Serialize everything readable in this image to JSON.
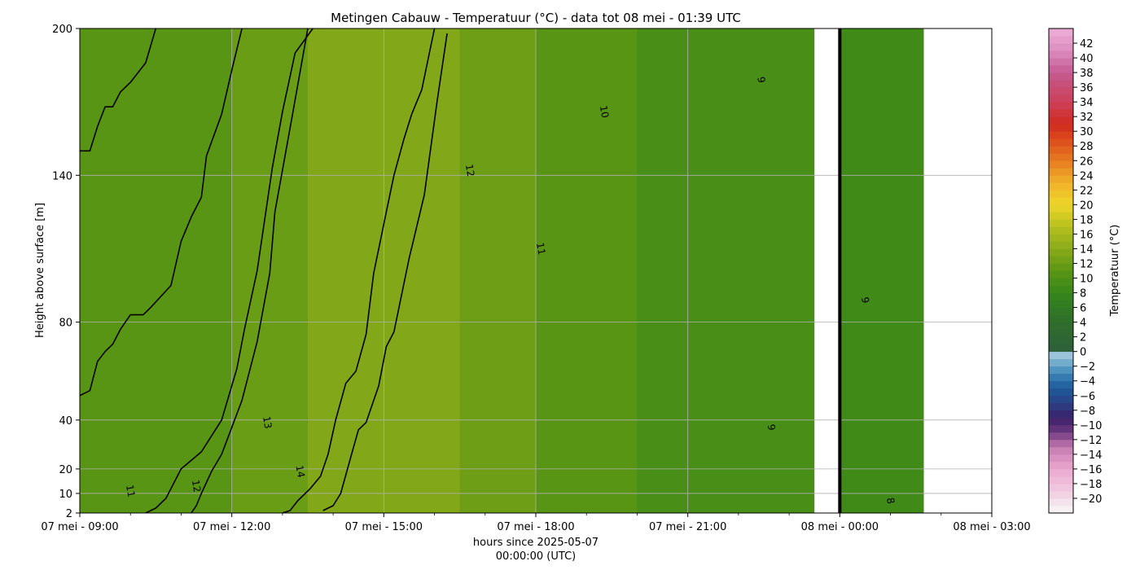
{
  "chart_data": {
    "type": "heatmap",
    "title": "Metingen Cabauw - Temperatuur (°C) - data tot 08 mei - 01:39 UTC",
    "xlabel": [
      "hours since 2025-05-07",
      "00:00:00 (UTC)"
    ],
    "ylabel": "Height above surface [m]",
    "colorbar_label": "Temperatuur (°C)",
    "x_range_hours": [
      9,
      27
    ],
    "y_range_m": [
      2,
      200
    ],
    "x_ticks": [
      {
        "hour": 9,
        "label": "07 mei - 09:00"
      },
      {
        "hour": 12,
        "label": "07 mei - 12:00"
      },
      {
        "hour": 15,
        "label": "07 mei - 15:00"
      },
      {
        "hour": 18,
        "label": "07 mei - 18:00"
      },
      {
        "hour": 21,
        "label": "07 mei - 21:00"
      },
      {
        "hour": 24,
        "label": "08 mei - 00:00"
      },
      {
        "hour": 27,
        "label": "08 mei - 03:00"
      }
    ],
    "y_ticks": [
      {
        "height": 2,
        "label": "2"
      },
      {
        "height": 10,
        "label": "10"
      },
      {
        "height": 20,
        "label": "20"
      },
      {
        "height": 40,
        "label": "40"
      },
      {
        "height": 80,
        "label": "80"
      },
      {
        "height": 140,
        "label": "140"
      },
      {
        "height": 200,
        "label": "200"
      }
    ],
    "grid": true,
    "data_gap_hours": [
      23.5,
      24.0
    ],
    "data_end_hour": 25.65,
    "temperature_bands": [
      {
        "from_hour": 9.0,
        "to_hour": 12.0,
        "temperature": 10.8
      },
      {
        "from_hour": 12.0,
        "to_hour": 13.5,
        "temperature": 12.0
      },
      {
        "from_hour": 13.5,
        "to_hour": 16.5,
        "temperature": 13.5
      },
      {
        "from_hour": 16.5,
        "to_hour": 18.0,
        "temperature": 12.2
      },
      {
        "from_hour": 18.0,
        "to_hour": 20.0,
        "temperature": 10.8
      },
      {
        "from_hour": 20.0,
        "to_hour": 23.5,
        "temperature": 9.5
      },
      {
        "from_hour": 24.0,
        "to_hour": 25.65,
        "temperature": 8.8
      }
    ],
    "contours": [
      {
        "level": 11,
        "label": "11",
        "points": [
          [
            9.0,
            150
          ],
          [
            9.2,
            150
          ],
          [
            9.35,
            160
          ],
          [
            9.5,
            168
          ],
          [
            9.65,
            168
          ],
          [
            9.8,
            174
          ],
          [
            10.0,
            178
          ],
          [
            10.3,
            186
          ],
          [
            10.5,
            200
          ]
        ]
      },
      {
        "level": 11,
        "label": "11",
        "points": [
          [
            9.0,
            50
          ],
          [
            9.2,
            52
          ],
          [
            9.35,
            64
          ],
          [
            9.5,
            68
          ],
          [
            9.65,
            71
          ],
          [
            9.8,
            77
          ],
          [
            10.0,
            83
          ],
          [
            10.25,
            83
          ],
          [
            10.4,
            86
          ],
          [
            10.8,
            95
          ],
          [
            11.0,
            113
          ],
          [
            11.2,
            123
          ],
          [
            11.4,
            131
          ],
          [
            11.5,
            148
          ],
          [
            11.8,
            165
          ],
          [
            12.0,
            183
          ],
          [
            12.2,
            200
          ]
        ]
      },
      {
        "level": 11,
        "label": "11",
        "points": [
          [
            10.3,
            2
          ],
          [
            10.5,
            4
          ],
          [
            10.7,
            8
          ],
          [
            11.0,
            20
          ],
          [
            11.4,
            27
          ],
          [
            11.8,
            40
          ],
          [
            12.1,
            61
          ],
          [
            12.25,
            77
          ],
          [
            12.5,
            101
          ],
          [
            12.8,
            143
          ],
          [
            13.0,
            166
          ],
          [
            13.25,
            190
          ],
          [
            13.6,
            200
          ]
        ]
      },
      {
        "level": 12,
        "label": "12",
        "points": [
          [
            11.2,
            2
          ],
          [
            11.3,
            5
          ],
          [
            11.4,
            10
          ],
          [
            11.6,
            19
          ],
          [
            11.8,
            26
          ],
          [
            12.0,
            37
          ],
          [
            12.2,
            48
          ],
          [
            12.5,
            72
          ],
          [
            12.75,
            100
          ],
          [
            12.85,
            125
          ],
          [
            13.2,
            165
          ],
          [
            13.5,
            200
          ]
        ]
      },
      {
        "level": 13,
        "label": "13",
        "points": [
          [
            13.0,
            2
          ],
          [
            13.15,
            3
          ],
          [
            13.3,
            7
          ],
          [
            13.55,
            12
          ],
          [
            13.75,
            17
          ],
          [
            13.9,
            26
          ],
          [
            14.05,
            40
          ],
          [
            14.25,
            55
          ],
          [
            14.45,
            60
          ],
          [
            14.65,
            75
          ],
          [
            14.8,
            100
          ],
          [
            15.05,
            125
          ],
          [
            15.2,
            140
          ],
          [
            15.4,
            155
          ],
          [
            15.55,
            165
          ],
          [
            15.75,
            175
          ],
          [
            15.9,
            190
          ],
          [
            16.0,
            200
          ]
        ]
      },
      {
        "level": 14,
        "label": "14",
        "points": [
          [
            13.8,
            3
          ],
          [
            14.0,
            5
          ],
          [
            14.15,
            10
          ],
          [
            14.35,
            25
          ],
          [
            14.5,
            36
          ],
          [
            14.65,
            39
          ],
          [
            14.9,
            54
          ],
          [
            15.05,
            70
          ],
          [
            15.2,
            76
          ],
          [
            15.5,
            106
          ],
          [
            15.8,
            132
          ],
          [
            16.05,
            170
          ],
          [
            16.25,
            198
          ]
        ]
      }
    ],
    "contour_label_positions": [
      {
        "label": "11",
        "hour": 10.0,
        "height": 11
      },
      {
        "label": "12",
        "hour": 11.3,
        "height": 13
      },
      {
        "label": "13",
        "hour": 12.7,
        "height": 39
      },
      {
        "label": "14",
        "hour": 13.35,
        "height": 19
      },
      {
        "label": "12",
        "hour": 16.7,
        "height": 142
      },
      {
        "label": "11",
        "hour": 18.1,
        "height": 110
      },
      {
        "label": "10",
        "hour": 19.35,
        "height": 166
      },
      {
        "label": "9",
        "hour": 22.45,
        "height": 179
      },
      {
        "label": "9",
        "hour": 22.65,
        "height": 37
      },
      {
        "label": "9",
        "hour": 24.5,
        "height": 89
      },
      {
        "label": "8",
        "hour": 25.0,
        "height": 7
      }
    ],
    "colorbar": {
      "min": -22,
      "max": 44,
      "tick_values": [
        -20,
        -18,
        -16,
        -14,
        -12,
        -10,
        -8,
        -6,
        -4,
        -2,
        0,
        2,
        4,
        6,
        8,
        10,
        12,
        14,
        16,
        18,
        20,
        22,
        24,
        26,
        28,
        30,
        32,
        34,
        36,
        38,
        40,
        42
      ],
      "tick_labels": [
        "−20",
        "−18",
        "−16",
        "−14",
        "−12",
        "−10",
        "−8",
        "−6",
        "−4",
        "−2",
        "0",
        "2",
        "4",
        "6",
        "8",
        "10",
        "12",
        "14",
        "16",
        "18",
        "20",
        "22",
        "24",
        "26",
        "28",
        "30",
        "32",
        "34",
        "36",
        "38",
        "40",
        "42"
      ],
      "stops": [
        {
          "value": -22,
          "color": "#f8f8f8"
        },
        {
          "value": -19,
          "color": "#f0cce0"
        },
        {
          "value": -16,
          "color": "#eba8cf"
        },
        {
          "value": -13,
          "color": "#c47ab0"
        },
        {
          "value": -11,
          "color": "#6e3a80"
        },
        {
          "value": -9,
          "color": "#3a1f6a"
        },
        {
          "value": -7,
          "color": "#2a4185"
        },
        {
          "value": -5,
          "color": "#1c5a9a"
        },
        {
          "value": -3,
          "color": "#3d86b7"
        },
        {
          "value": -1,
          "color": "#86b8d3"
        },
        {
          "value": 0,
          "color": "#b0cfe0"
        },
        {
          "value": 0.01,
          "color": "#2e5f3a"
        },
        {
          "value": 4,
          "color": "#2f6e2c"
        },
        {
          "value": 8,
          "color": "#36861a"
        },
        {
          "value": 11,
          "color": "#5a9614"
        },
        {
          "value": 14,
          "color": "#8aaa1a"
        },
        {
          "value": 17,
          "color": "#b6c01e"
        },
        {
          "value": 20,
          "color": "#eed62a"
        },
        {
          "value": 23,
          "color": "#f0b22a"
        },
        {
          "value": 26,
          "color": "#e67c20"
        },
        {
          "value": 29,
          "color": "#dc4a1c"
        },
        {
          "value": 31,
          "color": "#d02a20"
        },
        {
          "value": 34,
          "color": "#cc4058"
        },
        {
          "value": 38,
          "color": "#c45a90"
        },
        {
          "value": 41,
          "color": "#dc8cc0"
        },
        {
          "value": 44,
          "color": "#eeb0d8"
        }
      ]
    }
  }
}
